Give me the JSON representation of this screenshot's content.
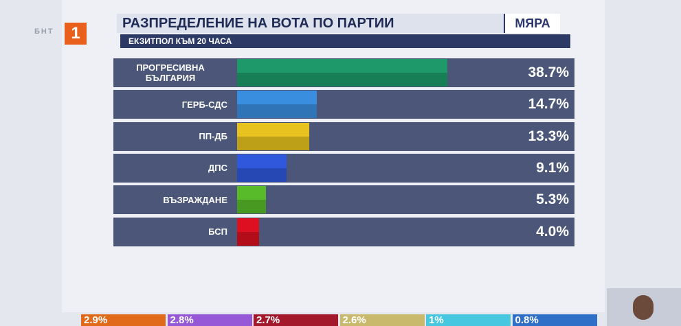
{
  "channel": {
    "name": "БНТ",
    "number": "1"
  },
  "agency": "МЯРА",
  "chart_data": [
    {
      "type": "hbar",
      "title": "РАЗПРЕДЕЛЕНИЕ НА ВОТА ПО ПАРТИИ",
      "subtitle": "ЕКЗИТПОЛ КЪМ 20 ЧАСА",
      "categories": [
        "ПРОГРЕСИВНА БЪЛГАРИЯ",
        "ГЕРБ-СДС",
        "ПП-ДБ",
        "ДПС",
        "ВЪЗРАЖДАНЕ",
        "БСП"
      ],
      "values": [
        38.7,
        14.7,
        13.3,
        9.1,
        5.3,
        4.0
      ],
      "value_labels": [
        "38.7%",
        "14.7%",
        "13.3%",
        "9.1%",
        "5.3%",
        "4.0%"
      ],
      "colors": [
        "#1e9a6a",
        "#3a8ee0",
        "#e8c21e",
        "#2f58dc",
        "#58bb2a",
        "#dc1020"
      ],
      "xlim": [
        0,
        62
      ]
    },
    {
      "type": "strip",
      "values": [
        2.9,
        2.8,
        2.7,
        2.6,
        1,
        0.8
      ],
      "value_labels": [
        "2.9%",
        "2.8%",
        "2.7%",
        "2.6%",
        "1%",
        "0.8%"
      ],
      "colors": [
        "#e06a1a",
        "#9658d6",
        "#a3192b",
        "#c9b96c",
        "#48c8e0",
        "#2f6fc8"
      ]
    }
  ]
}
